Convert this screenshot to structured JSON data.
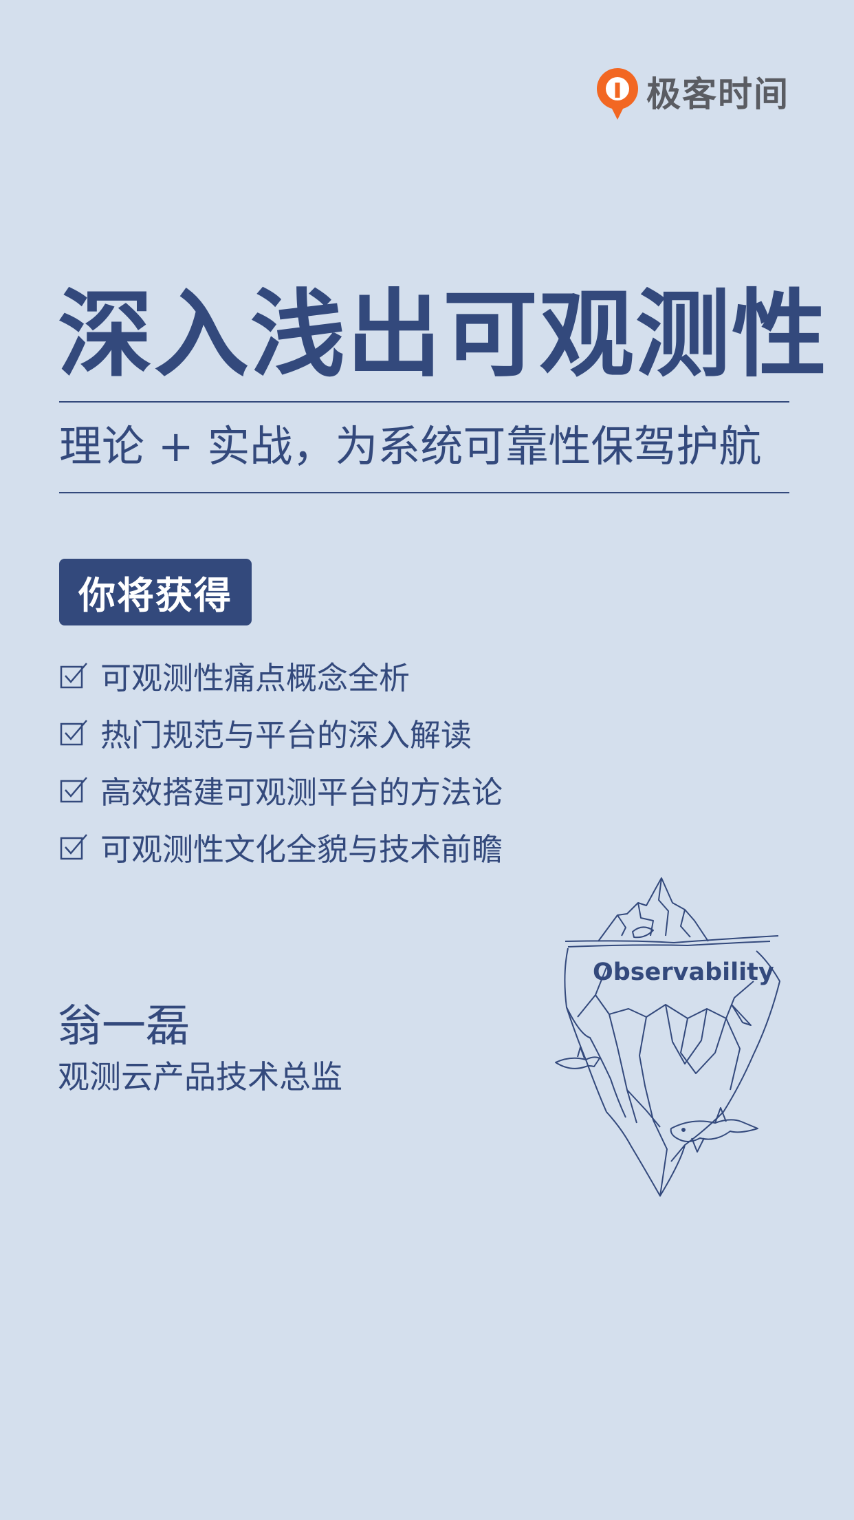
{
  "brand": {
    "name": "极客时间",
    "logo_icon": "geektime-logo-icon",
    "logo_color": "#f26722"
  },
  "course": {
    "title": "深入浅出可观测性",
    "subtitle": "理论 + 实战，为系统可靠性保驾护航"
  },
  "benefits": {
    "heading": "你将获得",
    "items": [
      "可观测性痛点概念全析",
      "热门规范与平台的深入解读",
      "高效搭建可观测平台的方法论",
      "可观测性文化全貌与技术前瞻"
    ]
  },
  "author": {
    "name": "翁一磊",
    "title": "观测云产品技术总监"
  },
  "illustration": {
    "label": "Observability",
    "icon": "iceberg-icon"
  },
  "colors": {
    "background": "#d4dfed",
    "primary": "#33497c"
  }
}
